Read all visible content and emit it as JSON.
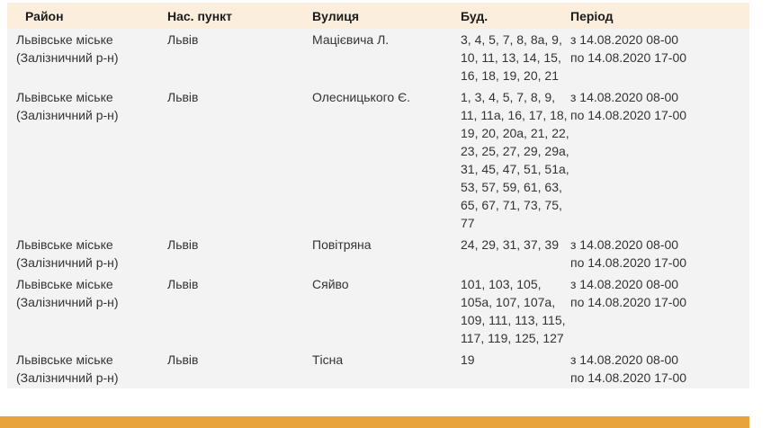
{
  "colors": {
    "header_bg": "#fceedd",
    "header_text": "#1c1c1c",
    "row_bg": "#f3f3f3",
    "body_text": "#333333",
    "footer_bar": "#e8a33d"
  },
  "table": {
    "columns": [
      "Район",
      "Нас. пункт",
      "Вулиця",
      "Буд.",
      "Період"
    ],
    "rows": [
      {
        "district": "Львівське міське\n(Залізничний р-н)",
        "settlement": "Львів",
        "street": "Мацієвича Л.",
        "buildings": "3, 4, 5, 7, 8, 8а, 9,\n10, 11, 13, 14, 15,\n16, 18, 19, 20, 21",
        "period": "з 14.08.2020 08-00\nпо 14.08.2020 17-00"
      },
      {
        "district": "Львівське міське\n(Залізничний р-н)",
        "settlement": "Львів",
        "street": "Олесницького Є.",
        "buildings": "1, 3, 4, 5, 7, 8, 9,\n11, 11а, 16, 17, 18,\n19, 20, 20а, 21, 22,\n23, 25, 27, 29, 29а,\n31, 45, 47, 51, 51а,\n53, 57, 59, 61, 63,\n65, 67, 71, 73, 75,\n77",
        "period": "з 14.08.2020 08-00\nпо 14.08.2020 17-00"
      },
      {
        "district": "Львівське міське\n(Залізничний р-н)",
        "settlement": "Львів",
        "street": "Повітряна",
        "buildings": "24, 29, 31, 37, 39",
        "period": "з 14.08.2020 08-00\nпо 14.08.2020 17-00"
      },
      {
        "district": "Львівське міське\n(Залізничний р-н)",
        "settlement": "Львів",
        "street": "Сяйво",
        "buildings": "101, 103, 105,\n105а, 107, 107а,\n109, 111, 113, 115,\n117, 119, 125, 127",
        "period": "з 14.08.2020 08-00\nпо 14.08.2020 17-00"
      },
      {
        "district": "Львівське міське\n(Залізничний р-н)",
        "settlement": "Львів",
        "street": "Тісна",
        "buildings": "19",
        "period": "з 14.08.2020 08-00\nпо 14.08.2020 17-00"
      }
    ]
  }
}
